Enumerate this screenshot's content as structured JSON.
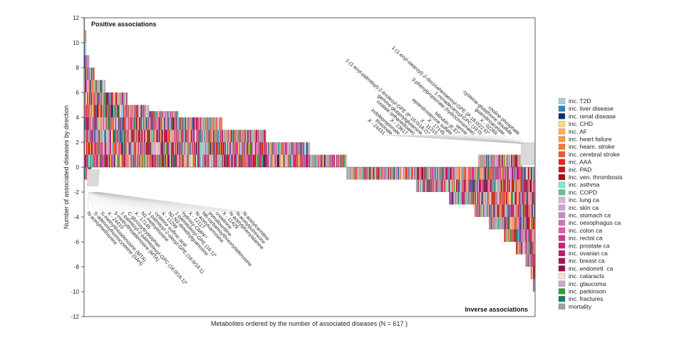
{
  "chart_data": {
    "type": "bar",
    "xlabel": "Metabolites ordered by the number of associated diseases (N = 617 )",
    "ylabel": "Number of associated diseases by direction",
    "ylim": [
      -12,
      12
    ],
    "y_ticks": [
      12,
      10,
      8,
      6,
      4,
      2,
      0,
      -2,
      -4,
      -6,
      -8,
      -10,
      -12
    ],
    "n_metabolites": 617,
    "panel_titles": {
      "positive": "Positive associations",
      "inverse": "Inverse associations"
    },
    "categories": [
      {
        "name": "inc. T2D",
        "color": "#a6cee3"
      },
      {
        "name": "inc. liver disease",
        "color": "#3182bd"
      },
      {
        "name": "inc. renal disease",
        "color": "#08306b"
      },
      {
        "name": "inc. CHD",
        "color": "#fdd686"
      },
      {
        "name": "inc. AF",
        "color": "#fdae61"
      },
      {
        "name": "inc. heart failure",
        "color": "#f99a45"
      },
      {
        "name": "inc. heam. stroke",
        "color": "#f47a32"
      },
      {
        "name": "inc. cerebral stroke",
        "color": "#ee5a2a"
      },
      {
        "name": "inc. AAA",
        "color": "#e3281f"
      },
      {
        "name": "inc. PAD",
        "color": "#c9141c"
      },
      {
        "name": "inc. ven. thrombosis",
        "color": "#a50f15"
      },
      {
        "name": "inc. asthma",
        "color": "#7ee8c8"
      },
      {
        "name": "inc. COPD",
        "color": "#5fc4a0"
      },
      {
        "name": "inc. lung ca",
        "color": "#d7b5d8"
      },
      {
        "name": "inc. skin ca",
        "color": "#cfa3d3"
      },
      {
        "name": "inc. stomach ca",
        "color": "#c48ac6"
      },
      {
        "name": "inc. oesophagus ca",
        "color": "#d870b8"
      },
      {
        "name": "inc. colon ca",
        "color": "#e05aa8"
      },
      {
        "name": "inc. rectal ca",
        "color": "#d9368f"
      },
      {
        "name": "inc. prostate ca",
        "color": "#c8207a"
      },
      {
        "name": "inc. ovarian ca",
        "color": "#b81c6a"
      },
      {
        "name": "inc. breast ca",
        "color": "#a3125a"
      },
      {
        "name": "inc. endomrtl. ca",
        "color": "#8e0e4e"
      },
      {
        "name": "inc. cataracts",
        "color": "#fbe0c4"
      },
      {
        "name": "inc. glaucoma",
        "color": "#c7a8d4"
      },
      {
        "name": "inc. parkinson",
        "color": "#33a02c"
      },
      {
        "name": "inc. fractures",
        "color": "#177e74"
      },
      {
        "name": "mortality",
        "color": "#a0a0a0"
      }
    ],
    "series": [
      {
        "name": "Positive associations",
        "points": [
          [
            1,
            12
          ],
          [
            2,
            11
          ],
          [
            4,
            9
          ],
          [
            8,
            8
          ],
          [
            15,
            7
          ],
          [
            30,
            6
          ],
          [
            60,
            5
          ],
          [
            90,
            4.5
          ],
          [
            130,
            4
          ],
          [
            190,
            3
          ],
          [
            250,
            2
          ],
          [
            310,
            1
          ],
          [
            360,
            0
          ]
        ],
        "inverse_sliver": [
          [
            1,
            1
          ],
          [
            10,
            1
          ],
          [
            12,
            0
          ]
        ]
      },
      {
        "name": "Inverse associations",
        "points": [
          [
            358,
            0
          ],
          [
            360,
            1
          ],
          [
            455,
            2
          ],
          [
            500,
            3
          ],
          [
            535,
            4
          ],
          [
            555,
            5
          ],
          [
            575,
            6
          ],
          [
            592,
            7
          ],
          [
            605,
            8
          ],
          [
            612,
            9
          ],
          [
            615,
            10
          ],
          [
            617,
            10
          ]
        ],
        "positive_sliver": [
          [
            540,
            1
          ],
          [
            595,
            1
          ],
          [
            600,
            0
          ]
        ]
      }
    ],
    "positive_labels": [
      "N-acetylmethionine",
      "S-adenosylhomocysteine (SAH)",
      "S-methylthioadenosine (MTA)",
      "X - 24410",
      "5-methylthioadenosine (MTA)",
      "1-palmitoyl-2-palmitoleoyl-GPC (16:0/16:1)*",
      "C-glycosyltryptophan",
      "X - 17145",
      "N1-methylinosine",
      "1-palmitoyl-2-oleoyl-GPE (16:0/18:1)",
      "cysteine sulfinic acid",
      "X - 11299",
      "N2,N2-dimethylguanosine",
      "1-palmitoleoyl-GPE (16:1)*",
      "hydroxy-CMPF*",
      "X - 12117",
      "N-acetylcarnosine",
      "N6-carbamoylthreonyladenosine",
      "pseudouridine",
      "creatinine",
      "X - 11429",
      "N-acetylphenylalanine",
      "N-acetylputrescine",
      "N-acetylcarnitine"
    ],
    "inverse_labels": [
      "X - 24431",
      "threonate",
      "indolepropionate",
      "X - 23617",
      "oxalate (ethanedioate)",
      "gamma-glutamylglutamine",
      "1-(1-enyl-palmitoyl)-2-linoleoyl-GPE (P-16:0/18:2)*",
      "X - 11315",
      "X - 17145",
      "epiandrosterone sulfate",
      "bilirubin (E,E)*",
      "serine",
      "3-phenylpropionate (hydrocinnamate)",
      "1-nonadecanoyl-GPC (19:0)",
      "1-(1-enyl-stearoyl)-2-docosahexaenoyl-GPE (P-18:0/22:6)*",
      "X - 02269",
      "guanidinoacetate",
      "cysteine-glutathione disulfide",
      "choline phosphate"
    ]
  }
}
